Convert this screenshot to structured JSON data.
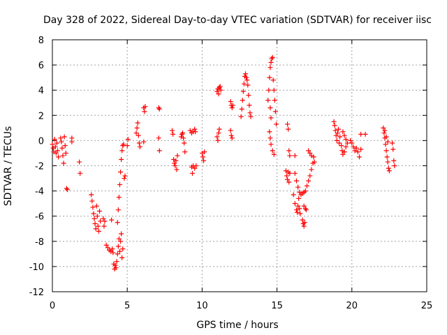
{
  "chart_data": {
    "type": "scatter",
    "title": "Day 328 of 2022, Sidereal Day-to-day VTEC variation (SDTVAR) for receiver iisc",
    "xlabel": "GPS time / hours",
    "ylabel": "SDTVAR / TECUs",
    "xlim": [
      0,
      25
    ],
    "ylim": [
      -12,
      8
    ],
    "xticks": [
      0,
      5,
      10,
      15,
      20,
      25
    ],
    "yticks": [
      -12,
      -10,
      -8,
      -6,
      -4,
      -2,
      0,
      2,
      4,
      6,
      8
    ],
    "grid": true,
    "marker": "+",
    "marker_color": "#ff0000",
    "series": [
      {
        "name": "SDTVAR",
        "points": [
          [
            0.0,
            -0.3
          ],
          [
            0.05,
            -0.6
          ],
          [
            0.1,
            -0.9
          ],
          [
            0.15,
            0.1
          ],
          [
            0.2,
            -0.5
          ],
          [
            0.25,
            -1.0
          ],
          [
            0.3,
            -0.2
          ],
          [
            0.35,
            -0.8
          ],
          [
            0.4,
            -1.3
          ],
          [
            0.55,
            0.2
          ],
          [
            0.6,
            -0.1
          ],
          [
            0.65,
            -0.6
          ],
          [
            0.7,
            -1.2
          ],
          [
            0.75,
            -1.8
          ],
          [
            0.8,
            0.3
          ],
          [
            0.85,
            -0.4
          ],
          [
            0.9,
            -1.0
          ],
          [
            0.95,
            -3.8
          ],
          [
            1.0,
            -3.9
          ],
          [
            1.3,
            0.2
          ],
          [
            1.3,
            -0.1
          ],
          [
            1.8,
            -1.7
          ],
          [
            1.85,
            -2.6
          ],
          [
            2.6,
            -4.3
          ],
          [
            2.65,
            -4.8
          ],
          [
            2.7,
            -5.3
          ],
          [
            2.75,
            -5.8
          ],
          [
            2.8,
            -6.2
          ],
          [
            2.85,
            -6.6
          ],
          [
            2.9,
            -7.0
          ],
          [
            2.95,
            -5.2
          ],
          [
            3.0,
            -6.0
          ],
          [
            3.05,
            -6.8
          ],
          [
            3.1,
            -7.2
          ],
          [
            3.15,
            -5.6
          ],
          [
            3.2,
            -6.4
          ],
          [
            3.4,
            -6.2
          ],
          [
            3.45,
            -6.8
          ],
          [
            3.5,
            -6.4
          ],
          [
            3.6,
            -8.3
          ],
          [
            3.7,
            -8.5
          ],
          [
            3.8,
            -8.7
          ],
          [
            3.9,
            -8.8
          ],
          [
            3.95,
            -6.3
          ],
          [
            4.0,
            -8.6
          ],
          [
            4.05,
            -8.9
          ],
          [
            4.1,
            -9.8
          ],
          [
            4.15,
            -10.2
          ],
          [
            4.2,
            -9.9
          ],
          [
            4.25,
            -10.1
          ],
          [
            4.3,
            -9.6
          ],
          [
            4.35,
            -9.0
          ],
          [
            4.4,
            -8.4
          ],
          [
            4.45,
            -7.8
          ],
          [
            4.5,
            -8.8
          ],
          [
            4.55,
            -8.0
          ],
          [
            4.6,
            -7.4
          ],
          [
            4.65,
            -9.3
          ],
          [
            4.7,
            -8.6
          ],
          [
            4.35,
            -6.5
          ],
          [
            4.4,
            -5.5
          ],
          [
            4.45,
            -4.5
          ],
          [
            4.5,
            -3.5
          ],
          [
            4.55,
            -2.5
          ],
          [
            4.6,
            -1.5
          ],
          [
            4.65,
            -0.8
          ],
          [
            4.7,
            -0.4
          ],
          [
            4.75,
            -0.3
          ],
          [
            4.8,
            -3.0
          ],
          [
            4.85,
            -2.8
          ],
          [
            5.0,
            -0.4
          ],
          [
            5.05,
            0.1
          ],
          [
            5.6,
            0.6
          ],
          [
            5.65,
            1.0
          ],
          [
            5.7,
            1.4
          ],
          [
            5.75,
            0.4
          ],
          [
            5.8,
            -0.2
          ],
          [
            5.85,
            -0.5
          ],
          [
            6.1,
            2.6
          ],
          [
            6.15,
            2.3
          ],
          [
            6.2,
            2.7
          ],
          [
            6.1,
            -0.1
          ],
          [
            7.1,
            2.6
          ],
          [
            7.15,
            2.5
          ],
          [
            7.1,
            0.2
          ],
          [
            7.15,
            -0.8
          ],
          [
            8.0,
            0.8
          ],
          [
            8.05,
            0.5
          ],
          [
            8.1,
            -1.5
          ],
          [
            8.15,
            -1.8
          ],
          [
            8.2,
            -2.0
          ],
          [
            8.25,
            -1.6
          ],
          [
            8.3,
            -2.3
          ],
          [
            8.35,
            -1.2
          ],
          [
            8.6,
            0.3
          ],
          [
            8.65,
            0.5
          ],
          [
            8.7,
            0.6
          ],
          [
            8.75,
            0.2
          ],
          [
            8.8,
            -0.2
          ],
          [
            8.85,
            -0.9
          ],
          [
            9.2,
            0.8
          ],
          [
            9.3,
            0.6
          ],
          [
            9.4,
            0.7
          ],
          [
            9.5,
            0.9
          ],
          [
            9.55,
            0.7
          ],
          [
            9.3,
            -2.1
          ],
          [
            9.35,
            -2.6
          ],
          [
            9.4,
            -2.0
          ],
          [
            9.5,
            -2.2
          ],
          [
            9.6,
            -2.0
          ],
          [
            10.0,
            -1.0
          ],
          [
            10.05,
            -1.3
          ],
          [
            10.1,
            -1.6
          ],
          [
            10.15,
            -0.9
          ],
          [
            11.0,
            3.9
          ],
          [
            11.05,
            4.1
          ],
          [
            11.1,
            3.7
          ],
          [
            11.15,
            4.2
          ],
          [
            11.2,
            4.3
          ],
          [
            11.25,
            4.0
          ],
          [
            11.0,
            0.3
          ],
          [
            11.05,
            0.0
          ],
          [
            11.1,
            0.6
          ],
          [
            11.15,
            0.9
          ],
          [
            11.9,
            3.1
          ],
          [
            11.95,
            2.8
          ],
          [
            12.0,
            2.6
          ],
          [
            12.05,
            2.8
          ],
          [
            11.9,
            0.8
          ],
          [
            11.95,
            0.4
          ],
          [
            12.0,
            0.2
          ],
          [
            12.6,
            1.9
          ],
          [
            12.65,
            2.5
          ],
          [
            12.7,
            3.2
          ],
          [
            12.75,
            3.9
          ],
          [
            12.8,
            4.5
          ],
          [
            12.85,
            5.1
          ],
          [
            12.9,
            5.3
          ],
          [
            12.95,
            5.0
          ],
          [
            13.0,
            4.8
          ],
          [
            13.05,
            4.4
          ],
          [
            13.1,
            3.6
          ],
          [
            13.15,
            2.8
          ],
          [
            13.2,
            2.2
          ],
          [
            13.25,
            1.9
          ],
          [
            14.4,
            3.2
          ],
          [
            14.45,
            4.0
          ],
          [
            14.5,
            5.0
          ],
          [
            14.55,
            5.8
          ],
          [
            14.6,
            6.2
          ],
          [
            14.65,
            6.5
          ],
          [
            14.7,
            6.6
          ],
          [
            14.75,
            4.8
          ],
          [
            14.8,
            4.0
          ],
          [
            14.85,
            3.2
          ],
          [
            14.9,
            2.3
          ],
          [
            14.95,
            1.3
          ],
          [
            14.55,
            2.6
          ],
          [
            14.6,
            1.8
          ],
          [
            14.5,
            0.7
          ],
          [
            14.55,
            0.2
          ],
          [
            14.6,
            -0.3
          ],
          [
            14.7,
            -0.8
          ],
          [
            14.8,
            -1.1
          ],
          [
            15.6,
            -2.4
          ],
          [
            15.65,
            -2.8
          ],
          [
            15.7,
            -3.1
          ],
          [
            15.75,
            -2.5
          ],
          [
            15.8,
            -3.3
          ],
          [
            15.85,
            -2.6
          ],
          [
            15.7,
            1.3
          ],
          [
            15.75,
            0.9
          ],
          [
            15.8,
            -0.8
          ],
          [
            15.85,
            -1.2
          ],
          [
            16.2,
            -1.2
          ],
          [
            16.1,
            -4.3
          ],
          [
            16.2,
            -5.0
          ],
          [
            16.3,
            -5.5
          ],
          [
            16.35,
            -5.7
          ],
          [
            16.4,
            -5.2
          ],
          [
            16.45,
            -4.6
          ],
          [
            16.5,
            -5.4
          ],
          [
            16.55,
            -5.8
          ],
          [
            16.2,
            -2.6
          ],
          [
            16.3,
            -3.2
          ],
          [
            16.4,
            -3.7
          ],
          [
            16.5,
            -4.1
          ],
          [
            16.6,
            -4.3
          ],
          [
            16.7,
            -4.2
          ],
          [
            16.8,
            -4.1
          ],
          [
            16.9,
            -4.0
          ],
          [
            16.7,
            -6.3
          ],
          [
            16.75,
            -6.6
          ],
          [
            16.8,
            -6.8
          ],
          [
            16.85,
            -6.5
          ],
          [
            16.8,
            -5.2
          ],
          [
            16.9,
            -5.4
          ],
          [
            16.95,
            -5.5
          ],
          [
            17.0,
            -3.6
          ],
          [
            17.1,
            -3.2
          ],
          [
            17.2,
            -2.8
          ],
          [
            17.3,
            -2.3
          ],
          [
            17.4,
            -1.8
          ],
          [
            17.45,
            -1.3
          ],
          [
            17.5,
            -1.7
          ],
          [
            17.1,
            -0.8
          ],
          [
            17.2,
            -1.0
          ],
          [
            17.3,
            -1.2
          ],
          [
            18.8,
            1.5
          ],
          [
            18.85,
            1.2
          ],
          [
            18.9,
            0.8
          ],
          [
            18.95,
            0.4
          ],
          [
            19.0,
            0.0
          ],
          [
            19.05,
            0.6
          ],
          [
            19.1,
            0.9
          ],
          [
            19.15,
            -0.2
          ],
          [
            19.2,
            0.3
          ],
          [
            19.3,
            -0.4
          ],
          [
            19.35,
            -0.8
          ],
          [
            19.4,
            -1.1
          ],
          [
            19.5,
            -0.9
          ],
          [
            19.6,
            -0.5
          ],
          [
            19.4,
            0.7
          ],
          [
            19.5,
            0.4
          ],
          [
            19.6,
            0.1
          ],
          [
            19.7,
            -0.2
          ],
          [
            19.9,
            0.0
          ],
          [
            20.0,
            -0.2
          ],
          [
            20.1,
            -0.5
          ],
          [
            20.2,
            -0.8
          ],
          [
            20.3,
            -0.6
          ],
          [
            20.4,
            -0.9
          ],
          [
            20.5,
            -1.3
          ],
          [
            20.6,
            -0.7
          ],
          [
            20.6,
            0.5
          ],
          [
            20.9,
            0.5
          ],
          [
            22.1,
            1.0
          ],
          [
            22.15,
            0.6
          ],
          [
            22.2,
            0.2
          ],
          [
            22.25,
            -0.3
          ],
          [
            22.3,
            -0.8
          ],
          [
            22.35,
            -1.3
          ],
          [
            22.4,
            -1.7
          ],
          [
            22.45,
            -2.2
          ],
          [
            22.5,
            -2.4
          ],
          [
            22.2,
            0.8
          ],
          [
            22.3,
            0.3
          ],
          [
            22.4,
            -0.1
          ],
          [
            22.7,
            -0.2
          ],
          [
            22.75,
            -0.7
          ],
          [
            22.8,
            -1.6
          ],
          [
            22.85,
            -2.0
          ]
        ]
      }
    ]
  }
}
